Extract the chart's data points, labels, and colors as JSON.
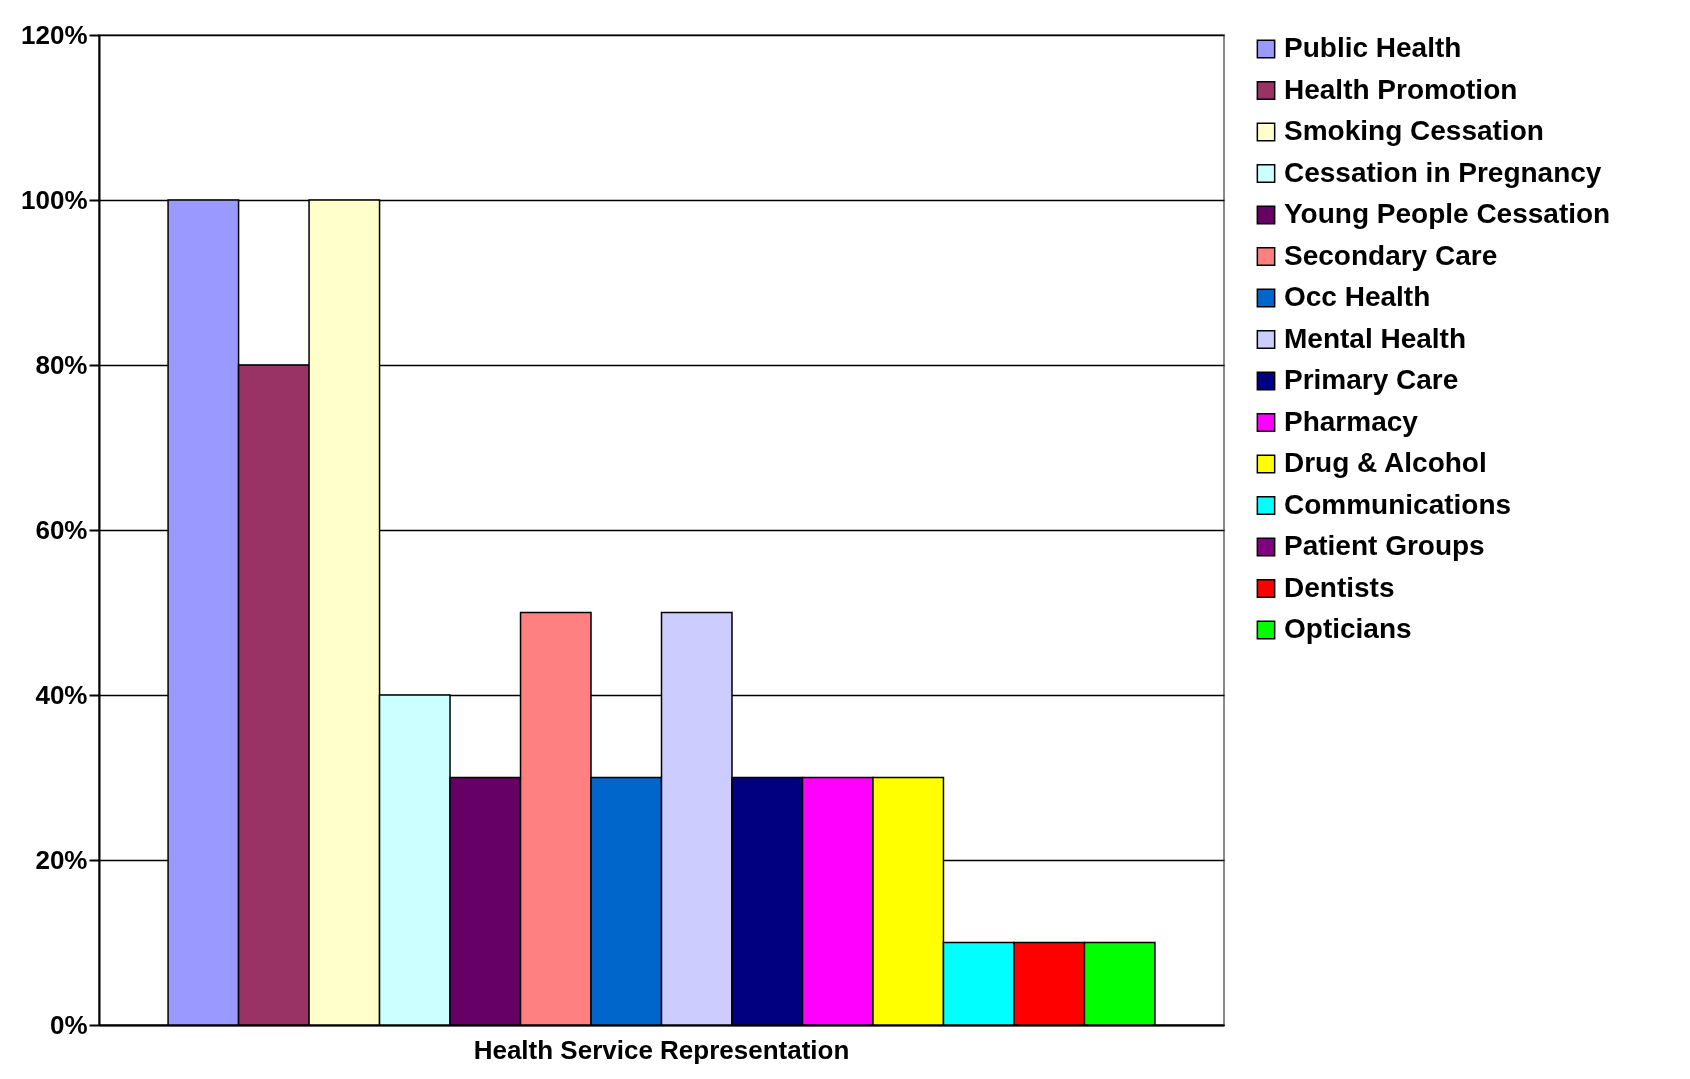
{
  "chart_data": {
    "type": "bar",
    "categories": [
      "Health Service Representation"
    ],
    "series": [
      {
        "name": "Public Health",
        "color": "#9999ff",
        "values": [
          100
        ]
      },
      {
        "name": "Health Promotion",
        "color": "#993366",
        "values": [
          80
        ]
      },
      {
        "name": "Smoking Cessation",
        "color": "#ffffcc",
        "values": [
          100
        ]
      },
      {
        "name": "Cessation in Pregnancy",
        "color": "#ccffff",
        "values": [
          40
        ]
      },
      {
        "name": "Young People Cessation",
        "color": "#660066",
        "values": [
          30
        ]
      },
      {
        "name": "Secondary Care",
        "color": "#ff8080",
        "values": [
          50
        ]
      },
      {
        "name": "Occ Health",
        "color": "#0066cc",
        "values": [
          30
        ]
      },
      {
        "name": "Mental Health",
        "color": "#ccccff",
        "values": [
          50
        ]
      },
      {
        "name": "Primary Care",
        "color": "#000080",
        "values": [
          30
        ]
      },
      {
        "name": "Pharmacy",
        "color": "#ff00ff",
        "values": [
          30
        ]
      },
      {
        "name": "Drug & Alcohol",
        "color": "#ffff00",
        "values": [
          30
        ]
      },
      {
        "name": "Communications",
        "color": "#00ffff",
        "values": [
          10
        ]
      },
      {
        "name": "Patient Groups",
        "color": "#800080",
        "values": [
          null
        ]
      },
      {
        "name": "Dentists",
        "color": "#ff0000",
        "values": [
          10
        ]
      },
      {
        "name": "Opticians",
        "color": "#00ff00",
        "values": [
          10
        ]
      }
    ],
    "ylim": [
      0,
      120
    ],
    "yticks": [
      {
        "value": 0,
        "label": "0%"
      },
      {
        "value": 20,
        "label": "20%"
      },
      {
        "value": 40,
        "label": "40%"
      },
      {
        "value": 60,
        "label": "60%"
      },
      {
        "value": 80,
        "label": "80%"
      },
      {
        "value": 100,
        "label": "100%"
      },
      {
        "value": 120,
        "label": "120%"
      }
    ],
    "grid": "y",
    "legend": "right"
  }
}
